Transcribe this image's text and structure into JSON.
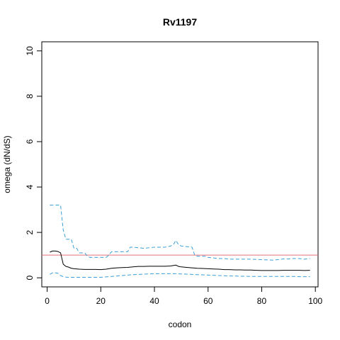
{
  "chart_data": {
    "type": "line",
    "title": "Rv1197",
    "xlabel": "codon",
    "ylabel": "omega (dN/dS)",
    "xlim": [
      -2,
      101
    ],
    "ylim": [
      -0.4,
      10.4
    ],
    "xticks": [
      0,
      20,
      40,
      60,
      80,
      100
    ],
    "yticks": [
      0,
      2,
      4,
      6,
      8,
      10
    ],
    "grid": false,
    "reference_line": {
      "y": 1,
      "color": "#e0707a"
    },
    "series": [
      {
        "role": "estimate",
        "style": "solid",
        "color": "#000000",
        "x": [
          1,
          2,
          3,
          4,
          5,
          6,
          7,
          8,
          9,
          10,
          12,
          14,
          16,
          18,
          20,
          22,
          24,
          26,
          28,
          30,
          32,
          34,
          36,
          38,
          40,
          42,
          44,
          46,
          47,
          48,
          49,
          50,
          52,
          54,
          56,
          58,
          60,
          62,
          64,
          66,
          68,
          70,
          72,
          74,
          76,
          78,
          80,
          82,
          84,
          86,
          88,
          90,
          92,
          94,
          96,
          98
        ],
        "y": [
          1.13,
          1.18,
          1.18,
          1.16,
          1.1,
          0.6,
          0.5,
          0.47,
          0.42,
          0.4,
          0.38,
          0.37,
          0.37,
          0.37,
          0.36,
          0.38,
          0.42,
          0.44,
          0.45,
          0.46,
          0.48,
          0.5,
          0.5,
          0.51,
          0.51,
          0.51,
          0.51,
          0.52,
          0.54,
          0.56,
          0.5,
          0.48,
          0.46,
          0.44,
          0.42,
          0.41,
          0.4,
          0.39,
          0.38,
          0.36,
          0.36,
          0.35,
          0.35,
          0.34,
          0.34,
          0.33,
          0.32,
          0.32,
          0.32,
          0.32,
          0.33,
          0.33,
          0.33,
          0.33,
          0.32,
          0.33
        ]
      },
      {
        "role": "upper_bound",
        "style": "dashed",
        "color": "#3a9fd8",
        "x": [
          1,
          2,
          5,
          6,
          7,
          8,
          9,
          10,
          11,
          12,
          13,
          14,
          15,
          16,
          17,
          22,
          23,
          24,
          30,
          31,
          32,
          36,
          40,
          44,
          46,
          47,
          48,
          49,
          50,
          54,
          55,
          56,
          58,
          59,
          60,
          64,
          66,
          68,
          72,
          76,
          80,
          84,
          86,
          88,
          90,
          92,
          94,
          96,
          98
        ],
        "y": [
          3.2,
          3.2,
          3.2,
          2.1,
          1.7,
          1.7,
          1.7,
          1.3,
          1.3,
          1.1,
          1.1,
          1.1,
          0.95,
          0.9,
          0.9,
          0.9,
          1.0,
          1.15,
          1.15,
          1.35,
          1.35,
          1.3,
          1.35,
          1.35,
          1.4,
          1.45,
          1.65,
          1.45,
          1.4,
          1.35,
          1.0,
          0.95,
          0.95,
          0.95,
          0.9,
          0.85,
          0.85,
          0.82,
          0.82,
          0.82,
          0.8,
          0.78,
          0.8,
          0.83,
          0.83,
          0.85,
          0.85,
          0.82,
          0.85
        ]
      },
      {
        "role": "lower_bound",
        "style": "dashed",
        "color": "#3a9fd8",
        "x": [
          1,
          2,
          3,
          4,
          5,
          6,
          7,
          8,
          10,
          12,
          14,
          16,
          18,
          20,
          22,
          24,
          26,
          28,
          30,
          32,
          34,
          36,
          38,
          40,
          42,
          44,
          46,
          48,
          50,
          52,
          54,
          56,
          58,
          60,
          62,
          64,
          66,
          68,
          70,
          72,
          74,
          76,
          78,
          80,
          82,
          84,
          86,
          88,
          90,
          92,
          94,
          96,
          98
        ],
        "y": [
          0.15,
          0.22,
          0.22,
          0.2,
          0.1,
          0.05,
          0.03,
          0.02,
          0.02,
          0.02,
          0.02,
          0.02,
          0.02,
          0.02,
          0.04,
          0.06,
          0.08,
          0.1,
          0.12,
          0.14,
          0.15,
          0.16,
          0.17,
          0.18,
          0.18,
          0.18,
          0.18,
          0.18,
          0.17,
          0.16,
          0.15,
          0.14,
          0.13,
          0.12,
          0.11,
          0.1,
          0.09,
          0.08,
          0.08,
          0.07,
          0.07,
          0.06,
          0.06,
          0.06,
          0.06,
          0.06,
          0.06,
          0.06,
          0.06,
          0.06,
          0.05,
          0.05,
          0.05
        ]
      }
    ]
  }
}
